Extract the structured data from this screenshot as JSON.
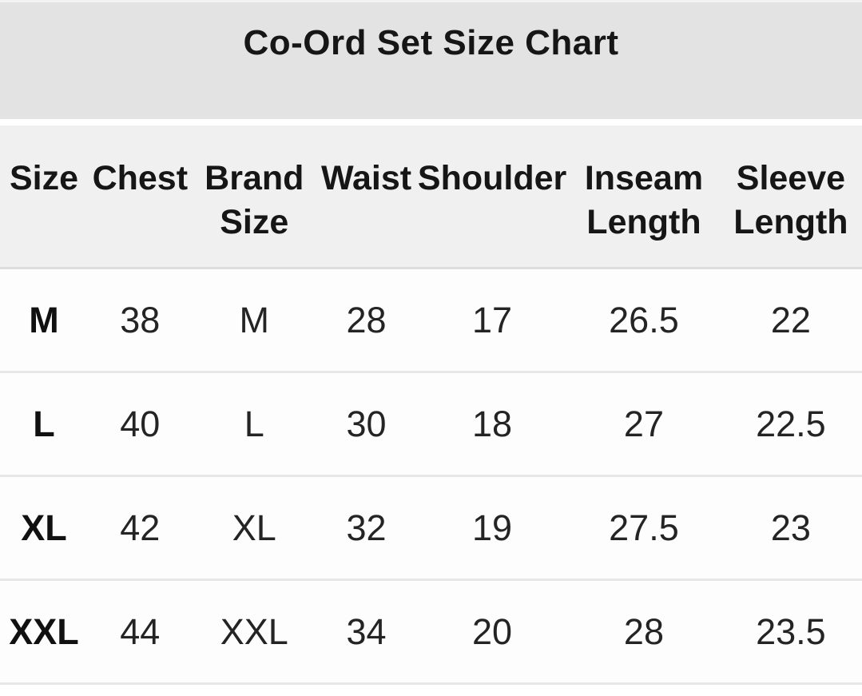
{
  "title": "Co-Ord Set Size Chart",
  "chart_data": {
    "type": "table",
    "title": "Co-Ord Set Size Chart",
    "columns": [
      "Size",
      "Chest",
      "Brand Size",
      "Waist",
      "Shoulder",
      "Inseam Length",
      "Sleeve Length"
    ],
    "rows": [
      [
        "M",
        38,
        "M",
        28,
        17,
        26.5,
        22
      ],
      [
        "L",
        40,
        "L",
        30,
        18,
        27,
        22.5
      ],
      [
        "XL",
        42,
        "XL",
        32,
        19,
        27.5,
        23
      ],
      [
        "XXL",
        44,
        "XXL",
        34,
        20,
        28,
        23.5
      ]
    ],
    "layout_hints": {
      "header_rows_wrap_two_lines": [
        "Brand Size",
        "Inseam Length",
        "Sleeve Length"
      ],
      "first_column_bold": true
    }
  },
  "colors": {
    "banner_background": "#e3e3e3",
    "header_background": "#f0f0f0",
    "row_background": "#fdfdfd",
    "divider": "#e7e7e7",
    "text": "#1c1c1c"
  }
}
